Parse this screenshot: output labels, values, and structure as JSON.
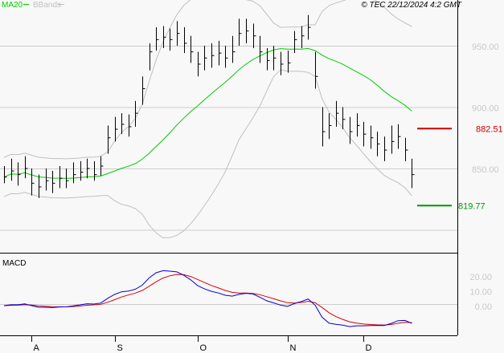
{
  "header": {
    "legend_ma": "MA20",
    "legend_bb": "BBands",
    "copyright": "© TEC 22/12/2024 4:2 GMT"
  },
  "colors": {
    "bars": "#000000",
    "ma20": "#00cc00",
    "bbands": "#c0c0c0",
    "resistance": "#cc0000",
    "support": "#009900",
    "macd": "#0000dd",
    "signal": "#dd0000",
    "grid": "#cccccc",
    "axis_text": "#c8c8c8"
  },
  "chart_data": {
    "type": "ohlc",
    "price_axis": {
      "ylim": [
        790,
        985
      ],
      "ticks": [
        {
          "value": 950,
          "label": "950.00"
        },
        {
          "value": 900,
          "label": "900.00"
        },
        {
          "value": 850,
          "label": "850.00"
        }
      ]
    },
    "levels": [
      {
        "name": "resistance",
        "value": 882.51,
        "label": "882.51"
      },
      {
        "name": "support",
        "value": 819.77,
        "label": "819.77"
      }
    ],
    "x_ticks": [
      {
        "index": 4,
        "label": "A"
      },
      {
        "index": 16,
        "label": "S"
      },
      {
        "index": 28,
        "label": "O"
      },
      {
        "index": 41,
        "label": "N"
      },
      {
        "index": 52,
        "label": "D"
      }
    ],
    "bars": [
      [
        852,
        838,
        843
      ],
      [
        858,
        840,
        848
      ],
      [
        855,
        836,
        845
      ],
      [
        860,
        842,
        850
      ],
      [
        850,
        828,
        838
      ],
      [
        845,
        826,
        835
      ],
      [
        850,
        832,
        840
      ],
      [
        848,
        830,
        838
      ],
      [
        852,
        834,
        842
      ],
      [
        850,
        834,
        840
      ],
      [
        855,
        838,
        845
      ],
      [
        856,
        840,
        847
      ],
      [
        858,
        842,
        850
      ],
      [
        856,
        840,
        845
      ],
      [
        860,
        844,
        852
      ],
      [
        885,
        862,
        875
      ],
      [
        892,
        872,
        882
      ],
      [
        895,
        878,
        886
      ],
      [
        894,
        876,
        884
      ],
      [
        905,
        884,
        895
      ],
      [
        925,
        902,
        915
      ],
      [
        952,
        930,
        945
      ],
      [
        965,
        946,
        955
      ],
      [
        966,
        948,
        957
      ],
      [
        964,
        946,
        955
      ],
      [
        970,
        950,
        960
      ],
      [
        965,
        944,
        952
      ],
      [
        958,
        936,
        945
      ],
      [
        945,
        925,
        935
      ],
      [
        950,
        930,
        940
      ],
      [
        952,
        932,
        942
      ],
      [
        954,
        934,
        944
      ],
      [
        950,
        932,
        940
      ],
      [
        958,
        936,
        945
      ],
      [
        972,
        950,
        960
      ],
      [
        972,
        952,
        962
      ],
      [
        968,
        948,
        958
      ],
      [
        958,
        936,
        945
      ],
      [
        948,
        930,
        938
      ],
      [
        950,
        930,
        940
      ],
      [
        945,
        926,
        935
      ],
      [
        946,
        928,
        936
      ],
      [
        962,
        944,
        955
      ],
      [
        966,
        948,
        958
      ],
      [
        975,
        955,
        965
      ],
      [
        945,
        915,
        925
      ],
      [
        900,
        868,
        880
      ],
      [
        895,
        874,
        885
      ],
      [
        905,
        884,
        895
      ],
      [
        900,
        882,
        890
      ],
      [
        892,
        870,
        880
      ],
      [
        895,
        876,
        885
      ],
      [
        888,
        868,
        878
      ],
      [
        885,
        866,
        875
      ],
      [
        880,
        860,
        870
      ],
      [
        876,
        856,
        865
      ],
      [
        885,
        862,
        872
      ],
      [
        886,
        866,
        876
      ],
      [
        875,
        856,
        865
      ],
      [
        858,
        834,
        845
      ]
    ],
    "ma_period": 20,
    "macd": {
      "title": "MACD",
      "ticks": [
        {
          "value": 20,
          "label": "20.00"
        },
        {
          "value": 10,
          "label": "10.00"
        },
        {
          "value": 0,
          "label": "0.00"
        }
      ]
    }
  }
}
